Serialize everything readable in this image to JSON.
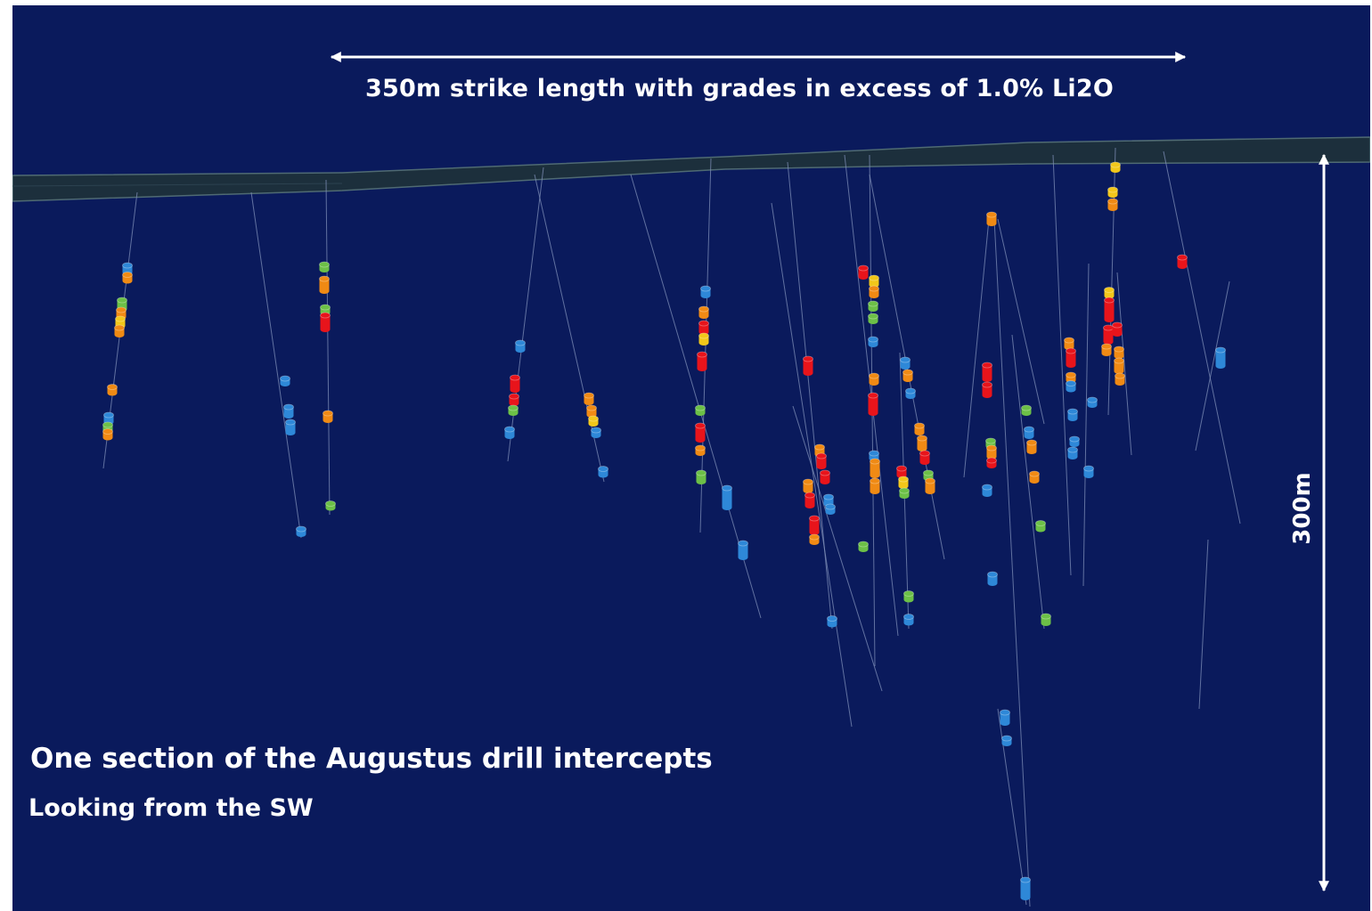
{
  "figure": {
    "strike_annotation": "350m strike length with grades in excess of 1.0% Li2O",
    "title": "One section of the Augustus drill intercepts",
    "subtitle": "Looking from the SW",
    "depth_annotation": "300m"
  },
  "colors": {
    "background": "#0a1a5c",
    "surface": "#1c2f3c",
    "surface_edge": "#4f6a73",
    "drill_trace": "#7f8fb8",
    "annotation": "#ffffff",
    "grade_high": "#e8141b",
    "grade_medium_high": "#f08a14",
    "grade_medium": "#f2c71a",
    "grade_low": "#6cc047",
    "grade_very_low": "#2e88d8"
  }
}
